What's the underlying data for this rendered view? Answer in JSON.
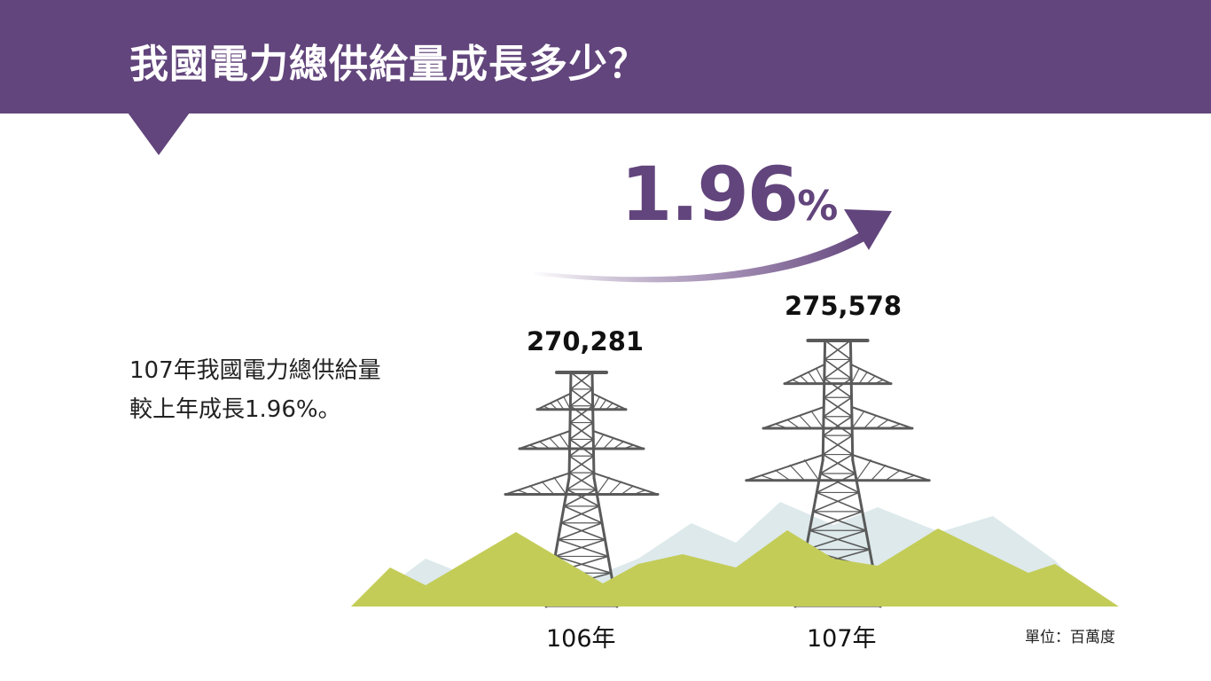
{
  "header": {
    "title": "我國電力總供給量成長多少？"
  },
  "description": {
    "line1": "107年我國電力總供給量",
    "line2": "較上年成長1.96%。"
  },
  "growth": {
    "value": "1.96",
    "symbol": "%"
  },
  "unit_label": "單位：百萬度",
  "colors": {
    "accent": "#62457c",
    "hill_green": "#c3cc57",
    "hill_back": "#dde9eb",
    "tower": "#5a5a5a"
  },
  "chart_data": {
    "type": "bar",
    "categories": [
      "106年",
      "107年"
    ],
    "values": [
      270281,
      275578
    ],
    "value_labels": [
      "270,281",
      "275,578"
    ],
    "unit": "單位：百萬度",
    "title": "",
    "growth_label": "1.96%"
  }
}
